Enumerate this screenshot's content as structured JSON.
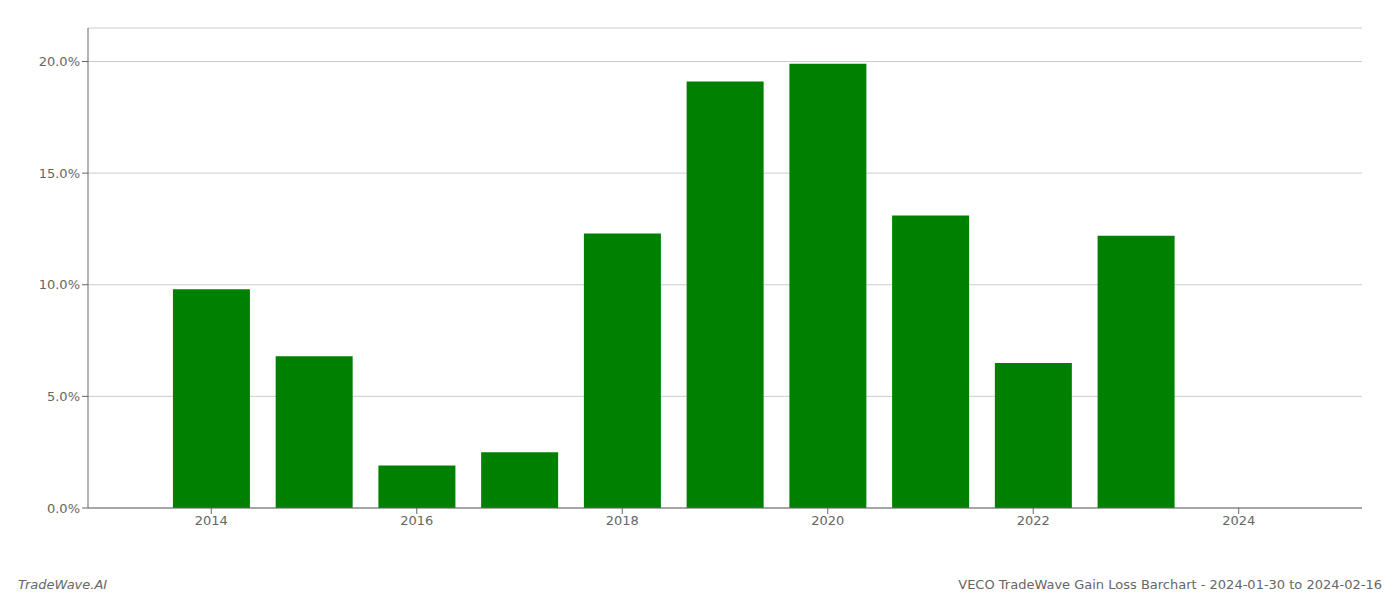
{
  "chart_data": {
    "type": "bar",
    "x": [
      2014,
      2015,
      2016,
      2017,
      2018,
      2019,
      2020,
      2021,
      2022,
      2023
    ],
    "values": [
      0.098,
      0.068,
      0.019,
      0.025,
      0.123,
      0.191,
      0.199,
      0.131,
      0.065,
      0.122
    ],
    "color": "#008000",
    "xlim": [
      2012.8,
      2025.2
    ],
    "xticks": [
      2014,
      2016,
      2018,
      2020,
      2022,
      2024
    ],
    "ylim": [
      0,
      0.215
    ],
    "yticks": [
      {
        "value": 0,
        "label": "0.0%"
      },
      {
        "value": 0.05,
        "label": "5.0%"
      },
      {
        "value": 0.1,
        "label": "10.0%"
      },
      {
        "value": 0.15,
        "label": "15.0%"
      },
      {
        "value": 0.2,
        "label": "20.0%"
      }
    ],
    "grid": true,
    "annotations": [
      "TradeWave.AI",
      "VECO TradeWave Gain Loss Barchart - 2024-01-30 to 2024-02-16"
    ]
  }
}
